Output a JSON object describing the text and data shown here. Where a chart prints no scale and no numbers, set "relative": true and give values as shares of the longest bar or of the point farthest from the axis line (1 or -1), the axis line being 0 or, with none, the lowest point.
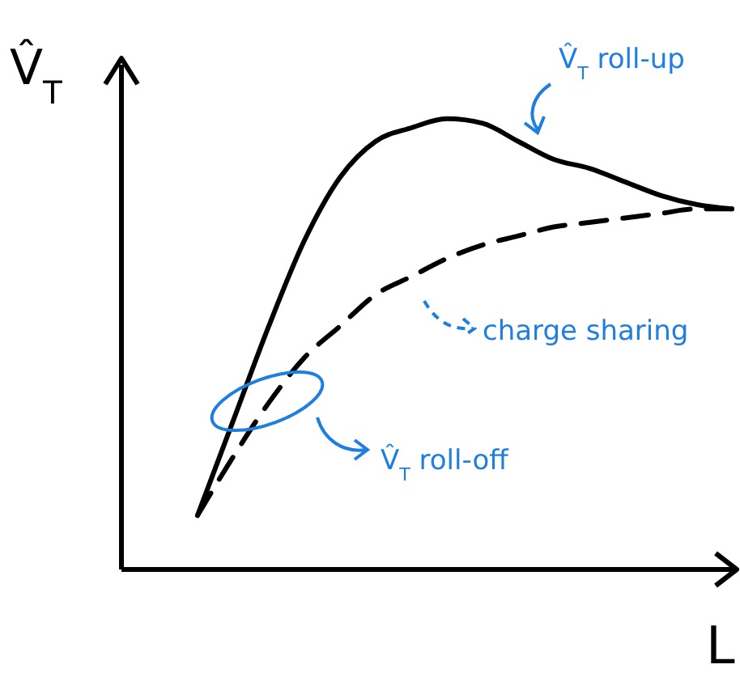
{
  "chart_data": {
    "type": "line",
    "relative": true,
    "ylabel": "V̂$_{T}$",
    "xlabel": "L",
    "categories": [
      null,
      null,
      null,
      null,
      null,
      null,
      null,
      null,
      null,
      null,
      null,
      null,
      null,
      null,
      null,
      null
    ],
    "series": [
      {
        "color": "#000000",
        "line_style": "solid",
        "values": [
          0.12,
          0.33,
          0.54,
          0.73,
          0.87,
          0.95,
          0.98,
          1,
          0.99,
          0.95,
          0.91,
          0.89,
          0.86,
          0.83,
          0.81,
          0.8
        ]
      },
      {
        "color": "#000000",
        "line_style": "dashed",
        "values": [
          0.12,
          0.25,
          0.37,
          0.47,
          0.54,
          0.61,
          0.65,
          0.69,
          0.72,
          0.74,
          0.76,
          0.77,
          0.78,
          0.79,
          0.8,
          0.8
        ]
      }
    ],
    "annotations": [
      "V̂$_{T}$ roll-up",
      "charge sharing",
      "V̂$_{T}$ roll-off"
    ],
    "grid": false,
    "legend": false,
    "marker": "none"
  }
}
